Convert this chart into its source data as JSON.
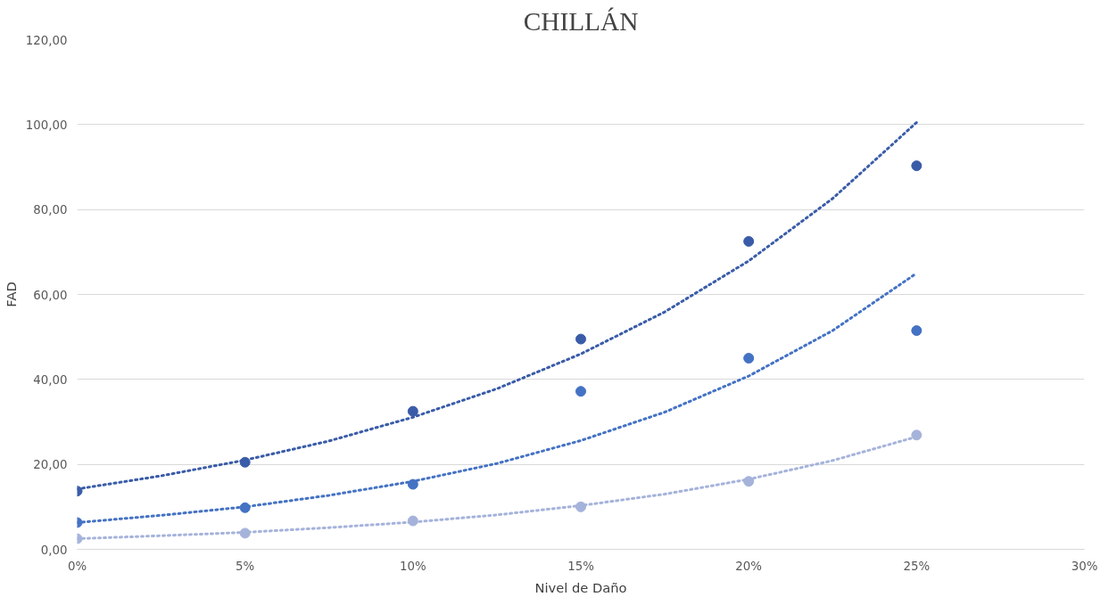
{
  "chart_data": {
    "type": "scatter",
    "title": "CHILLÁN",
    "xlabel": "Nivel de Daño",
    "ylabel": "FAD",
    "xlim": [
      0,
      30
    ],
    "ylim": [
      0,
      120
    ],
    "xticks": [
      {
        "value": 0,
        "label": "0%"
      },
      {
        "value": 5,
        "label": "5%"
      },
      {
        "value": 10,
        "label": "10%"
      },
      {
        "value": 15,
        "label": "15%"
      },
      {
        "value": 20,
        "label": "20%"
      },
      {
        "value": 25,
        "label": "25%"
      },
      {
        "value": 30,
        "label": "30%"
      }
    ],
    "yticks": [
      {
        "value": 0,
        "label": "0,00"
      },
      {
        "value": 20,
        "label": "20,00"
      },
      {
        "value": 40,
        "label": "40,00"
      },
      {
        "value": 60,
        "label": "60,00"
      },
      {
        "value": 80,
        "label": "80,00"
      },
      {
        "value": 100,
        "label": "100,00"
      },
      {
        "value": 120,
        "label": "120,00"
      }
    ],
    "grid": "y",
    "series": [
      {
        "type": "line",
        "line_style": "dotted",
        "color": "#3a5ca8",
        "x": [
          0,
          2.5,
          5,
          7.5,
          10,
          12.5,
          15,
          17.5,
          20,
          22.5,
          25
        ],
        "values": [
          14.2,
          17.3,
          21.0,
          25.5,
          31.1,
          37.8,
          46.0,
          55.9,
          67.9,
          82.6,
          100.5
        ]
      },
      {
        "type": "line",
        "line_style": "dotted",
        "color": "#4472c4",
        "x": [
          0,
          2.5,
          5,
          7.5,
          10,
          12.5,
          15,
          17.5,
          20,
          22.5,
          25
        ],
        "values": [
          6.3,
          8.0,
          10.0,
          12.7,
          16.0,
          20.2,
          25.6,
          32.3,
          40.8,
          51.5,
          65.0
        ]
      },
      {
        "type": "line",
        "line_style": "dotted",
        "color": "#a5b3db",
        "x": [
          0,
          2.5,
          5,
          7.5,
          10,
          12.5,
          15,
          17.5,
          20,
          22.5,
          25
        ],
        "values": [
          2.5,
          3.2,
          4.0,
          5.1,
          6.4,
          8.1,
          10.3,
          13.0,
          16.5,
          20.9,
          26.5
        ]
      },
      {
        "marker": "circle",
        "color": "#3a5ca8",
        "x": [
          0,
          5,
          10,
          15,
          20,
          25
        ],
        "values": [
          13.7,
          20.5,
          32.5,
          49.5,
          72.5,
          90.3
        ]
      },
      {
        "marker": "circle",
        "color": "#4472c4",
        "x": [
          0,
          5,
          10,
          15,
          20,
          25
        ],
        "values": [
          6.3,
          9.8,
          15.3,
          37.2,
          45.0,
          51.5
        ]
      },
      {
        "marker": "circle",
        "color": "#a5b3db",
        "x": [
          0,
          5,
          10,
          15,
          20,
          25
        ],
        "values": [
          2.5,
          3.8,
          6.7,
          10.0,
          16.0,
          26.9
        ]
      }
    ]
  }
}
